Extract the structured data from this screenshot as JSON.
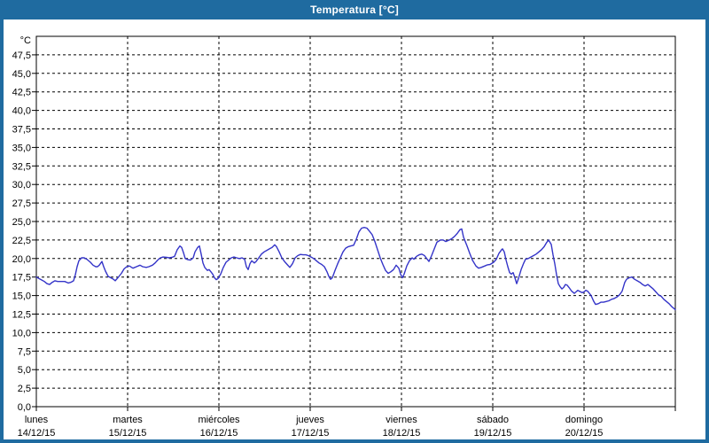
{
  "window": {
    "title": "Temperatura [°C]"
  },
  "colors": {
    "frame": "#1f6ba0",
    "title_text": "#ffffff",
    "plot_background": "#ffffff",
    "grid": "#000000",
    "border": "#000000",
    "line": "#3434c8",
    "label": "#000000"
  },
  "chart_data": {
    "type": "line",
    "title": "Temperatura [°C]",
    "grid": "dashed",
    "legend": "none",
    "y_axis": {
      "unit": "°C",
      "min": 0,
      "max": 50,
      "grid_step": 2.5,
      "tick_labels": [
        "0,0",
        "2,5",
        "5,0",
        "7,5",
        "10,0",
        "12,5",
        "15,0",
        "17,5",
        "20,0",
        "22,5",
        "25,0",
        "27,5",
        "30,0",
        "32,5",
        "35,0",
        "37,5",
        "40,0",
        "42,5",
        "45,0",
        "47,5"
      ]
    },
    "x_axis": {
      "span_days": 7,
      "days": [
        {
          "name": "lunes",
          "date": "14/12/15"
        },
        {
          "name": "martes",
          "date": "15/12/15"
        },
        {
          "name": "miércoles",
          "date": "16/12/15"
        },
        {
          "name": "jueves",
          "date": "17/12/15"
        },
        {
          "name": "viernes",
          "date": "18/12/15"
        },
        {
          "name": "sábado",
          "date": "19/12/15"
        },
        {
          "name": "domingo",
          "date": "20/12/15"
        }
      ]
    },
    "series": [
      {
        "name": "Temperatura",
        "points": [
          [
            0.0,
            17.5
          ],
          [
            0.029,
            17.3
          ],
          [
            0.058,
            17.1
          ],
          [
            0.087,
            16.9
          ],
          [
            0.117,
            16.6
          ],
          [
            0.146,
            16.5
          ],
          [
            0.175,
            16.8
          ],
          [
            0.204,
            17.0
          ],
          [
            0.233,
            16.9
          ],
          [
            0.272,
            16.9
          ],
          [
            0.311,
            16.9
          ],
          [
            0.35,
            16.7
          ],
          [
            0.379,
            16.8
          ],
          [
            0.408,
            17.0
          ],
          [
            0.427,
            17.8
          ],
          [
            0.447,
            18.9
          ],
          [
            0.466,
            19.7
          ],
          [
            0.495,
            20.1
          ],
          [
            0.524,
            20.1
          ],
          [
            0.553,
            19.9
          ],
          [
            0.592,
            19.5
          ],
          [
            0.621,
            19.1
          ],
          [
            0.65,
            18.9
          ],
          [
            0.67,
            18.9
          ],
          [
            0.689,
            19.1
          ],
          [
            0.718,
            19.6
          ],
          [
            0.738,
            18.9
          ],
          [
            0.757,
            18.3
          ],
          [
            0.786,
            17.6
          ],
          [
            0.816,
            17.4
          ],
          [
            0.845,
            17.2
          ],
          [
            0.864,
            17.0
          ],
          [
            0.893,
            17.4
          ],
          [
            0.932,
            18.0
          ],
          [
            0.961,
            18.6
          ],
          [
            0.99,
            18.9
          ],
          [
            1.019,
            19.0
          ],
          [
            1.058,
            18.7
          ],
          [
            1.097,
            18.9
          ],
          [
            1.136,
            19.1
          ],
          [
            1.165,
            18.9
          ],
          [
            1.204,
            18.8
          ],
          [
            1.233,
            18.9
          ],
          [
            1.272,
            19.1
          ],
          [
            1.301,
            19.4
          ],
          [
            1.33,
            19.8
          ],
          [
            1.359,
            20.1
          ],
          [
            1.388,
            20.2
          ],
          [
            1.427,
            20.15
          ],
          [
            1.456,
            20.1
          ],
          [
            1.485,
            20.15
          ],
          [
            1.515,
            20.3
          ],
          [
            1.544,
            21.2
          ],
          [
            1.573,
            21.7
          ],
          [
            1.592,
            21.5
          ],
          [
            1.612,
            20.8
          ],
          [
            1.631,
            20.0
          ],
          [
            1.66,
            19.85
          ],
          [
            1.689,
            19.8
          ],
          [
            1.718,
            20.1
          ],
          [
            1.738,
            20.9
          ],
          [
            1.767,
            21.5
          ],
          [
            1.786,
            21.7
          ],
          [
            1.806,
            20.6
          ],
          [
            1.825,
            19.4
          ],
          [
            1.845,
            18.8
          ],
          [
            1.874,
            18.4
          ],
          [
            1.893,
            18.5
          ],
          [
            1.913,
            18.2
          ],
          [
            1.932,
            17.9
          ],
          [
            1.951,
            17.4
          ],
          [
            1.971,
            17.15
          ],
          [
            1.99,
            17.3
          ],
          [
            2.019,
            17.9
          ],
          [
            2.049,
            18.8
          ],
          [
            2.078,
            19.5
          ],
          [
            2.107,
            19.8
          ],
          [
            2.136,
            20.1
          ],
          [
            2.165,
            20.2
          ],
          [
            2.194,
            20.1
          ],
          [
            2.223,
            20.0
          ],
          [
            2.252,
            20.1
          ],
          [
            2.282,
            19.9
          ],
          [
            2.301,
            18.9
          ],
          [
            2.32,
            18.5
          ],
          [
            2.34,
            19.3
          ],
          [
            2.359,
            19.7
          ],
          [
            2.388,
            19.4
          ],
          [
            2.408,
            19.6
          ],
          [
            2.437,
            20.1
          ],
          [
            2.466,
            20.6
          ],
          [
            2.495,
            20.9
          ],
          [
            2.524,
            21.1
          ],
          [
            2.553,
            21.3
          ],
          [
            2.583,
            21.5
          ],
          [
            2.612,
            21.85
          ],
          [
            2.631,
            21.6
          ],
          [
            2.66,
            20.9
          ],
          [
            2.689,
            20.1
          ],
          [
            2.718,
            19.6
          ],
          [
            2.748,
            19.2
          ],
          [
            2.777,
            18.8
          ],
          [
            2.806,
            19.3
          ],
          [
            2.835,
            20.1
          ],
          [
            2.864,
            20.4
          ],
          [
            2.893,
            20.55
          ],
          [
            2.922,
            20.5
          ],
          [
            2.951,
            20.5
          ],
          [
            2.981,
            20.4
          ],
          [
            3.01,
            20.2
          ],
          [
            3.039,
            20.0
          ],
          [
            3.068,
            19.7
          ],
          [
            3.097,
            19.4
          ],
          [
            3.126,
            19.2
          ],
          [
            3.155,
            18.9
          ],
          [
            3.184,
            18.2
          ],
          [
            3.204,
            17.6
          ],
          [
            3.223,
            17.2
          ],
          [
            3.243,
            17.4
          ],
          [
            3.272,
            18.4
          ],
          [
            3.301,
            19.3
          ],
          [
            3.33,
            20.1
          ],
          [
            3.359,
            20.9
          ],
          [
            3.388,
            21.4
          ],
          [
            3.417,
            21.6
          ],
          [
            3.447,
            21.7
          ],
          [
            3.476,
            21.8
          ],
          [
            3.505,
            22.6
          ],
          [
            3.534,
            23.6
          ],
          [
            3.563,
            24.1
          ],
          [
            3.592,
            24.2
          ],
          [
            3.621,
            24.1
          ],
          [
            3.65,
            23.7
          ],
          [
            3.68,
            23.2
          ],
          [
            3.709,
            22.3
          ],
          [
            3.738,
            21.2
          ],
          [
            3.767,
            20.1
          ],
          [
            3.796,
            19.2
          ],
          [
            3.825,
            18.4
          ],
          [
            3.854,
            18.0
          ],
          [
            3.883,
            18.2
          ],
          [
            3.913,
            18.5
          ],
          [
            3.942,
            19.1
          ],
          [
            3.971,
            18.7
          ],
          [
            3.99,
            17.9
          ],
          [
            4.01,
            17.4
          ],
          [
            4.029,
            17.9
          ],
          [
            4.058,
            19.0
          ],
          [
            4.087,
            19.7
          ],
          [
            4.117,
            20.1
          ],
          [
            4.136,
            19.9
          ],
          [
            4.165,
            20.3
          ],
          [
            4.194,
            20.5
          ],
          [
            4.223,
            20.6
          ],
          [
            4.252,
            20.4
          ],
          [
            4.282,
            19.9
          ],
          [
            4.301,
            19.6
          ],
          [
            4.33,
            20.4
          ],
          [
            4.359,
            21.3
          ],
          [
            4.388,
            22.2
          ],
          [
            4.427,
            22.5
          ],
          [
            4.456,
            22.5
          ],
          [
            4.485,
            22.3
          ],
          [
            4.524,
            22.5
          ],
          [
            4.553,
            22.7
          ],
          [
            4.583,
            23.0
          ],
          [
            4.612,
            23.4
          ],
          [
            4.641,
            23.9
          ],
          [
            4.66,
            24.0
          ],
          [
            4.68,
            22.9
          ],
          [
            4.718,
            21.7
          ],
          [
            4.748,
            20.7
          ],
          [
            4.777,
            19.8
          ],
          [
            4.816,
            19.0
          ],
          [
            4.845,
            18.7
          ],
          [
            4.874,
            18.8
          ],
          [
            4.913,
            19.0
          ],
          [
            4.942,
            19.15
          ],
          [
            4.971,
            19.2
          ],
          [
            5.01,
            19.5
          ],
          [
            5.039,
            19.9
          ],
          [
            5.068,
            20.7
          ],
          [
            5.097,
            21.2
          ],
          [
            5.107,
            21.3
          ],
          [
            5.126,
            20.9
          ],
          [
            5.146,
            19.8
          ],
          [
            5.165,
            18.9
          ],
          [
            5.184,
            18.1
          ],
          [
            5.204,
            17.9
          ],
          [
            5.223,
            18.1
          ],
          [
            5.243,
            17.4
          ],
          [
            5.262,
            16.6
          ],
          [
            5.282,
            17.3
          ],
          [
            5.311,
            18.5
          ],
          [
            5.34,
            19.4
          ],
          [
            5.359,
            19.9
          ],
          [
            5.388,
            20.0
          ],
          [
            5.417,
            20.2
          ],
          [
            5.447,
            20.4
          ],
          [
            5.476,
            20.6
          ],
          [
            5.505,
            20.9
          ],
          [
            5.534,
            21.2
          ],
          [
            5.563,
            21.6
          ],
          [
            5.592,
            22.2
          ],
          [
            5.612,
            22.5
          ],
          [
            5.641,
            21.9
          ],
          [
            5.66,
            20.5
          ],
          [
            5.68,
            19.3
          ],
          [
            5.699,
            17.8
          ],
          [
            5.718,
            16.6
          ],
          [
            5.738,
            16.2
          ],
          [
            5.757,
            15.9
          ],
          [
            5.777,
            16.1
          ],
          [
            5.796,
            16.5
          ],
          [
            5.816,
            16.4
          ],
          [
            5.835,
            16.1
          ],
          [
            5.864,
            15.6
          ],
          [
            5.893,
            15.3
          ],
          [
            5.913,
            15.5
          ],
          [
            5.932,
            15.7
          ],
          [
            5.961,
            15.5
          ],
          [
            5.981,
            15.4
          ],
          [
            6.0,
            15.5
          ],
          [
            6.019,
            15.7
          ],
          [
            6.039,
            15.6
          ],
          [
            6.058,
            15.3
          ],
          [
            6.078,
            15.0
          ],
          [
            6.107,
            14.2
          ],
          [
            6.126,
            13.8
          ],
          [
            6.155,
            13.9
          ],
          [
            6.184,
            14.1
          ],
          [
            6.214,
            14.1
          ],
          [
            6.243,
            14.2
          ],
          [
            6.272,
            14.3
          ],
          [
            6.301,
            14.5
          ],
          [
            6.33,
            14.6
          ],
          [
            6.359,
            14.8
          ],
          [
            6.388,
            15.1
          ],
          [
            6.417,
            15.6
          ],
          [
            6.447,
            16.8
          ],
          [
            6.466,
            17.2
          ],
          [
            6.495,
            17.4
          ],
          [
            6.524,
            17.5
          ],
          [
            6.553,
            17.2
          ],
          [
            6.583,
            17.0
          ],
          [
            6.612,
            16.8
          ],
          [
            6.641,
            16.5
          ],
          [
            6.67,
            16.3
          ],
          [
            6.699,
            16.5
          ],
          [
            6.728,
            16.2
          ],
          [
            6.757,
            15.9
          ],
          [
            6.786,
            15.5
          ],
          [
            6.816,
            15.1
          ],
          [
            6.845,
            14.9
          ],
          [
            6.874,
            14.5
          ],
          [
            6.903,
            14.2
          ],
          [
            6.932,
            13.9
          ],
          [
            6.961,
            13.5
          ],
          [
            6.981,
            13.3
          ],
          [
            7.0,
            13.1
          ]
        ]
      }
    ]
  }
}
